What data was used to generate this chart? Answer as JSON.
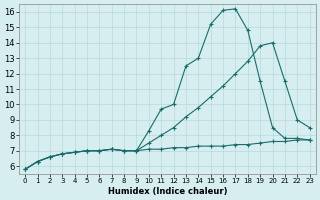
{
  "xlabel": "Humidex (Indice chaleur)",
  "background_color": "#d6eef0",
  "grid_color": "#b8d8dc",
  "line_color": "#1a6b6b",
  "xlim": [
    -0.5,
    23.5
  ],
  "ylim": [
    5.5,
    16.5
  ],
  "xticks": [
    0,
    1,
    2,
    3,
    4,
    5,
    6,
    7,
    8,
    9,
    10,
    11,
    12,
    13,
    14,
    15,
    16,
    17,
    18,
    19,
    20,
    21,
    22,
    23
  ],
  "yticks": [
    6,
    7,
    8,
    9,
    10,
    11,
    12,
    13,
    14,
    15,
    16
  ],
  "curve1_x": [
    0,
    1,
    2,
    3,
    4,
    5,
    6,
    7,
    8,
    9,
    10,
    11,
    12,
    13,
    14,
    15,
    16,
    17,
    18,
    19,
    20,
    21,
    22,
    23
  ],
  "curve1_y": [
    5.8,
    6.3,
    6.6,
    6.8,
    6.9,
    7.0,
    7.0,
    7.1,
    7.0,
    7.0,
    8.3,
    9.7,
    10.0,
    12.5,
    13.0,
    15.2,
    16.1,
    16.2,
    14.8,
    11.5,
    8.5,
    7.8,
    7.8,
    7.7
  ],
  "curve2_x": [
    0,
    1,
    2,
    3,
    4,
    5,
    6,
    7,
    8,
    9,
    10,
    11,
    12,
    13,
    14,
    15,
    16,
    17,
    18,
    19,
    20,
    21,
    22,
    23
  ],
  "curve2_y": [
    5.8,
    6.3,
    6.6,
    6.8,
    6.9,
    7.0,
    7.0,
    7.1,
    7.0,
    7.0,
    7.5,
    8.0,
    8.5,
    9.2,
    9.8,
    10.5,
    11.2,
    12.0,
    12.8,
    13.8,
    14.0,
    11.5,
    9.0,
    8.5
  ],
  "curve3_x": [
    0,
    1,
    2,
    3,
    4,
    5,
    6,
    7,
    8,
    9,
    10,
    11,
    12,
    13,
    14,
    15,
    16,
    17,
    18,
    19,
    20,
    21,
    22,
    23
  ],
  "curve3_y": [
    5.8,
    6.3,
    6.6,
    6.8,
    6.9,
    7.0,
    7.0,
    7.1,
    7.0,
    7.0,
    7.1,
    7.1,
    7.2,
    7.2,
    7.3,
    7.3,
    7.3,
    7.4,
    7.4,
    7.5,
    7.6,
    7.6,
    7.7,
    7.7
  ]
}
